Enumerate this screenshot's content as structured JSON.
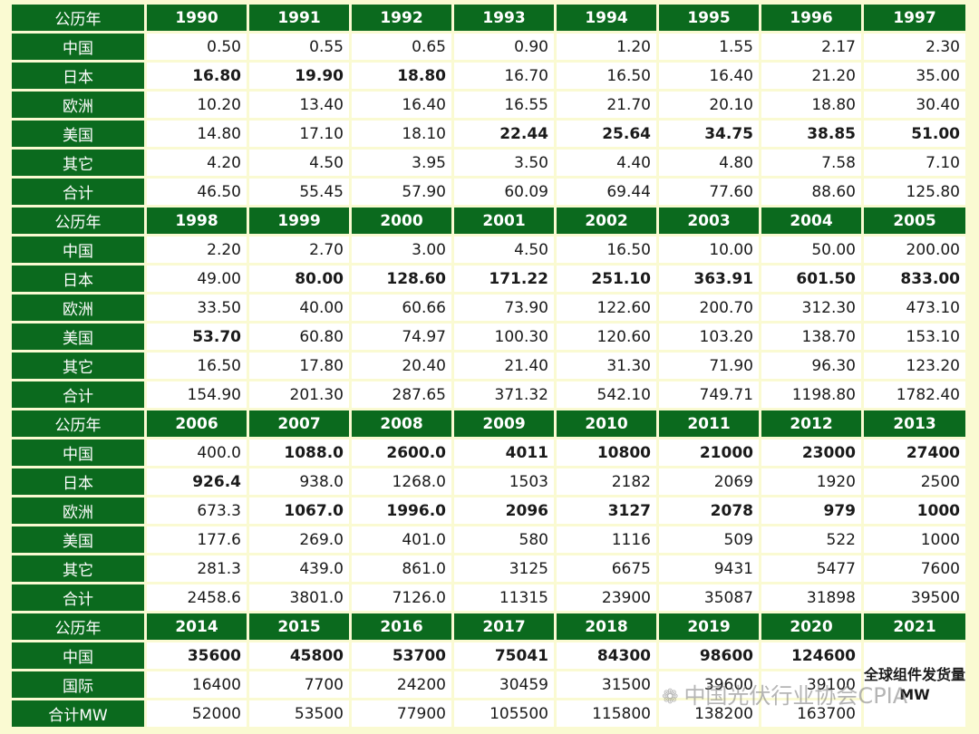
{
  "sections": [
    {
      "header": "公历年",
      "years": [
        "1990",
        "1991",
        "1992",
        "1993",
        "1994",
        "1995",
        "1996",
        "1997"
      ],
      "rows": [
        {
          "label": "中国",
          "values": [
            "0.50",
            "0.55",
            "0.65",
            "0.90",
            "1.20",
            "1.55",
            "2.17",
            "2.30"
          ],
          "styles": [
            "",
            "",
            "",
            "",
            "",
            "",
            "",
            ""
          ]
        },
        {
          "label": "日本",
          "values": [
            "16.80",
            "19.90",
            "18.80",
            "16.70",
            "16.50",
            "16.40",
            "21.20",
            "35.00"
          ],
          "styles": [
            "gold",
            "gold",
            "gold",
            "",
            "",
            "",
            "",
            ""
          ]
        },
        {
          "label": "欧洲",
          "values": [
            "10.20",
            "13.40",
            "16.40",
            "16.55",
            "21.70",
            "20.10",
            "18.80",
            "30.40"
          ],
          "styles": [
            "",
            "",
            "",
            "",
            "",
            "",
            "",
            ""
          ]
        },
        {
          "label": "美国",
          "values": [
            "14.80",
            "17.10",
            "18.10",
            "22.44",
            "25.64",
            "34.75",
            "38.85",
            "51.00"
          ],
          "styles": [
            "",
            "",
            "",
            "darkred",
            "darkred",
            "darkred",
            "darkred",
            "darkred"
          ]
        },
        {
          "label": "其它",
          "values": [
            "4.20",
            "4.50",
            "3.95",
            "3.50",
            "4.40",
            "4.80",
            "7.58",
            "7.10"
          ],
          "styles": [
            "",
            "",
            "",
            "",
            "",
            "",
            "",
            ""
          ]
        },
        {
          "label": "合计",
          "values": [
            "46.50",
            "55.45",
            "57.90",
            "60.09",
            "69.44",
            "77.60",
            "88.60",
            "125.80"
          ],
          "styles": [
            "",
            "",
            "",
            "",
            "",
            "",
            "",
            ""
          ]
        }
      ]
    },
    {
      "header": "公历年",
      "years": [
        "1998",
        "1999",
        "2000",
        "2001",
        "2002",
        "2003",
        "2004",
        "2005"
      ],
      "rows": [
        {
          "label": "中国",
          "values": [
            "2.20",
            "2.70",
            "3.00",
            "4.50",
            "16.50",
            "10.00",
            "50.00",
            "200.00"
          ],
          "styles": [
            "",
            "",
            "",
            "",
            "",
            "",
            "",
            ""
          ]
        },
        {
          "label": "日本",
          "values": [
            "49.00",
            "80.00",
            "128.60",
            "171.22",
            "251.10",
            "363.91",
            "601.50",
            "833.00"
          ],
          "styles": [
            "",
            "gold",
            "gold",
            "gold",
            "gold",
            "gold",
            "gold",
            "gold"
          ]
        },
        {
          "label": "欧洲",
          "values": [
            "33.50",
            "40.00",
            "60.66",
            "73.90",
            "122.60",
            "200.70",
            "312.30",
            "473.10"
          ],
          "styles": [
            "",
            "",
            "",
            "",
            "",
            "",
            "",
            ""
          ]
        },
        {
          "label": "美国",
          "values": [
            "53.70",
            "60.80",
            "74.97",
            "100.30",
            "120.60",
            "103.20",
            "138.70",
            "153.10"
          ],
          "styles": [
            "darkred",
            "",
            "",
            "",
            "",
            "",
            "",
            ""
          ]
        },
        {
          "label": "其它",
          "values": [
            "16.50",
            "17.80",
            "20.40",
            "21.40",
            "31.30",
            "71.90",
            "96.30",
            "123.20"
          ],
          "styles": [
            "",
            "",
            "",
            "",
            "",
            "",
            "",
            ""
          ]
        },
        {
          "label": "合计",
          "values": [
            "154.90",
            "201.30",
            "287.65",
            "371.32",
            "542.10",
            "749.71",
            "1198.80",
            "1782.40"
          ],
          "styles": [
            "",
            "",
            "",
            "",
            "",
            "",
            "",
            ""
          ]
        }
      ]
    },
    {
      "header": "公历年",
      "years": [
        "2006",
        "2007",
        "2008",
        "2009",
        "2010",
        "2011",
        "2012",
        "2013"
      ],
      "rows": [
        {
          "label": "中国",
          "values": [
            "400.0",
            "1088.0",
            "2600.0",
            "4011",
            "10800",
            "21000",
            "23000",
            "27400"
          ],
          "styles": [
            "",
            "blue",
            "blue",
            "blue",
            "blue",
            "blue",
            "blue",
            "blue"
          ]
        },
        {
          "label": "日本",
          "values": [
            "926.4",
            "938.0",
            "1268.0",
            "1503",
            "2182",
            "2069",
            "1920",
            "2500"
          ],
          "styles": [
            "gold",
            "",
            "",
            "",
            "",
            "",
            "",
            ""
          ]
        },
        {
          "label": "欧洲",
          "values": [
            "673.3",
            "1067.0",
            "1996.0",
            "2096",
            "3127",
            "2078",
            "979",
            "1000"
          ],
          "styles": [
            "",
            "red",
            "red",
            "red",
            "red",
            "red",
            "red",
            "red"
          ]
        },
        {
          "label": "美国",
          "values": [
            "177.6",
            "269.0",
            "401.0",
            "580",
            "1116",
            "509",
            "522",
            "1000"
          ],
          "styles": [
            "",
            "",
            "",
            "",
            "",
            "",
            "",
            ""
          ]
        },
        {
          "label": "其它",
          "values": [
            "281.3",
            "439.0",
            "861.0",
            "3125",
            "6675",
            "9431",
            "5477",
            "7600"
          ],
          "styles": [
            "",
            "",
            "",
            "",
            "",
            "",
            "",
            ""
          ]
        },
        {
          "label": "合计",
          "values": [
            "2458.6",
            "3801.0",
            "7126.0",
            "11315",
            "23900",
            "35087",
            "31898",
            "39500"
          ],
          "styles": [
            "",
            "",
            "",
            "",
            "",
            "",
            "",
            ""
          ]
        }
      ]
    },
    {
      "header": "公历年",
      "years": [
        "2014",
        "2015",
        "2016",
        "2017",
        "2018",
        "2019",
        "2020",
        "2021"
      ],
      "rows": [
        {
          "label": "中国",
          "values": [
            "35600",
            "45800",
            "53700",
            "75041",
            "84300",
            "98600",
            "124600"
          ],
          "styles": [
            "blue",
            "blue",
            "blue",
            "blue",
            "blue",
            "blue",
            "blue"
          ]
        },
        {
          "label": "国际",
          "values": [
            "16400",
            "7700",
            "24200",
            "30459",
            "31500",
            "39600",
            "39100"
          ],
          "styles": [
            "",
            "",
            "",
            "",
            "",
            "",
            ""
          ]
        },
        {
          "label": "合计MW",
          "values": [
            "52000",
            "53500",
            "77900",
            "105500",
            "115800",
            "138200",
            "163700"
          ],
          "styles": [
            "",
            "",
            "",
            "",
            "",
            "",
            ""
          ]
        }
      ],
      "note": "全球组件发货量MW"
    }
  ],
  "watermark": "中国光伏行业协会CPIA",
  "colors": {
    "header_bg": "#0b6a1e",
    "page_bg": "#fafad2",
    "gold": "#c8961a",
    "darkred": "#b01818",
    "red": "#e01c1c",
    "blue": "#1b2db0"
  }
}
